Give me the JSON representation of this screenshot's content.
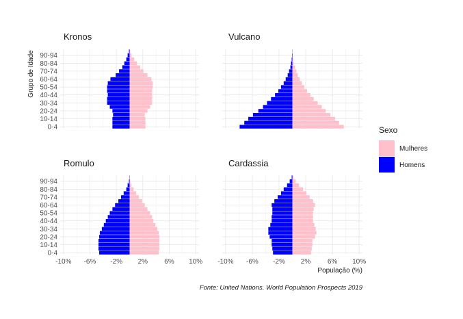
{
  "chart_data": {
    "type": "bar",
    "orientation": "horizontal",
    "age_groups": [
      "0-4",
      "5-9",
      "10-14",
      "15-19",
      "20-24",
      "25-29",
      "30-34",
      "35-39",
      "40-44",
      "45-49",
      "50-54",
      "55-59",
      "60-64",
      "65-69",
      "70-74",
      "75-79",
      "80-84",
      "85-89",
      "90-94",
      "95-99"
    ],
    "yticks": [
      "0-4",
      "10-14",
      "20-24",
      "30-34",
      "40-44",
      "50-54",
      "60-64",
      "70-74",
      "80-84",
      "90-94"
    ],
    "xticks": [
      "-10%",
      "-6%",
      "-2%",
      "2%",
      "6%",
      "10%"
    ],
    "xtick_values": [
      -10,
      -6,
      -2,
      2,
      6,
      10
    ],
    "xlim": [
      -10.5,
      10.5
    ],
    "ylabel": "Grupo de Idade",
    "xlabel": "População (%)",
    "caption": "Fonte: United Nations. World Population Prospects 2019",
    "legend": {
      "title": "Sexo",
      "entries": [
        {
          "label": "Mulheres",
          "color": "#FFC0CB"
        },
        {
          "label": "Homens",
          "color": "#0000FF"
        }
      ]
    },
    "panels": [
      {
        "title": "Kronos",
        "homens": [
          2.6,
          2.6,
          2.6,
          2.5,
          2.6,
          3.0,
          3.4,
          3.4,
          3.3,
          3.4,
          3.4,
          3.3,
          2.9,
          2.1,
          1.6,
          1.1,
          0.8,
          0.5,
          0.3,
          0.1
        ],
        "mulheres": [
          2.4,
          2.4,
          2.4,
          2.3,
          2.7,
          3.1,
          3.4,
          3.4,
          3.4,
          3.4,
          3.5,
          3.5,
          3.3,
          2.7,
          2.1,
          1.6,
          1.1,
          0.7,
          0.3,
          0.1
        ]
      },
      {
        "title": "Vulcano",
        "homens": [
          7.9,
          7.2,
          6.6,
          5.9,
          5.1,
          4.4,
          3.8,
          3.2,
          2.6,
          2.1,
          1.7,
          1.3,
          1.0,
          0.7,
          0.5,
          0.3,
          0.2,
          0.1,
          0.05,
          0.02
        ],
        "mulheres": [
          7.7,
          7.0,
          6.4,
          5.7,
          5.0,
          4.4,
          3.8,
          3.2,
          2.7,
          2.2,
          1.8,
          1.4,
          1.1,
          0.8,
          0.6,
          0.4,
          0.2,
          0.1,
          0.05,
          0.02
        ]
      },
      {
        "title": "Romulo",
        "homens": [
          4.6,
          4.7,
          4.7,
          4.7,
          4.6,
          4.5,
          4.2,
          3.9,
          3.6,
          3.3,
          3.0,
          2.6,
          2.2,
          1.7,
          1.3,
          0.9,
          0.5,
          0.3,
          0.1,
          0.03
        ],
        "mulheres": [
          4.4,
          4.5,
          4.5,
          4.5,
          4.5,
          4.4,
          4.2,
          3.9,
          3.6,
          3.4,
          3.1,
          2.7,
          2.3,
          1.9,
          1.4,
          1.0,
          0.6,
          0.3,
          0.1,
          0.03
        ]
      },
      {
        "title": "Cardassia",
        "homens": [
          2.9,
          3.0,
          3.1,
          3.1,
          3.4,
          3.6,
          3.6,
          3.3,
          3.1,
          3.1,
          3.0,
          3.0,
          3.1,
          2.7,
          2.2,
          1.7,
          1.3,
          0.8,
          0.4,
          0.1
        ],
        "mulheres": [
          2.8,
          2.9,
          3.0,
          3.0,
          3.4,
          3.6,
          3.5,
          3.3,
          3.1,
          3.1,
          3.1,
          3.2,
          3.4,
          3.1,
          2.6,
          2.1,
          1.6,
          1.0,
          0.5,
          0.15
        ]
      }
    ]
  }
}
